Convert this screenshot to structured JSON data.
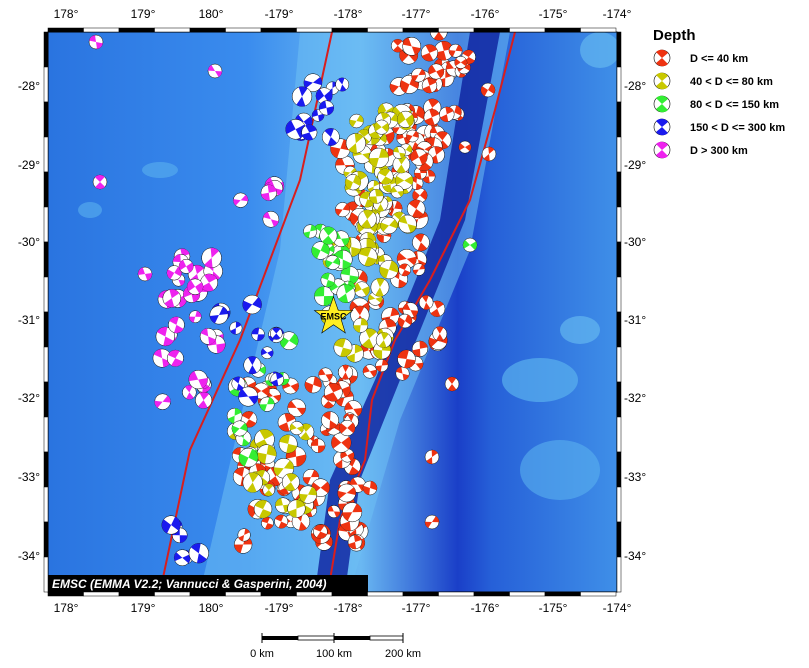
{
  "map": {
    "lon_range": [
      178.0,
      -174.0
    ],
    "lat_range": [
      -34.4,
      -27.3
    ],
    "top_lon_ticks": [
      "178°",
      "179°",
      "180°",
      "-179°",
      "-178°",
      "-177°",
      "-176°",
      "-175°",
      "-174°"
    ],
    "bottom_lon_ticks": [
      "178°",
      "179°",
      "180°",
      "-179°",
      "-178°",
      "-177°",
      "-176°",
      "-175°",
      "-174°"
    ],
    "left_lat_ticks": [
      "-28°",
      "-29°",
      "-30°",
      "-31°",
      "-32°",
      "-33°",
      "-34°"
    ],
    "right_lat_ticks": [
      "-28°",
      "-29°",
      "-30°",
      "-31°",
      "-32°",
      "-33°",
      "-34°"
    ],
    "colors": {
      "ocean_deep": "#1f4fd6",
      "ocean_mid": "#2f82ea",
      "ocean_light": "#5fb0f2",
      "trench": "#0a1a9a",
      "plate_boundary": "#d81e1e"
    },
    "credit": "EMSC (EMMA V2.2; Vannucci & Gasperini, 2004)",
    "epicenter": {
      "label": "EMSC",
      "lon": 181.9,
      "lat": -30.95,
      "symbol": "star"
    }
  },
  "legend": {
    "title": "Depth",
    "items": [
      {
        "label": "D <= 40 km",
        "color": "#ee3311",
        "icon": "beachball-shallow-icon"
      },
      {
        "label": "40 < D <= 80 km",
        "color": "#c8c800",
        "icon": "beachball-intermediate-shallow-icon"
      },
      {
        "label": "80 < D <= 150 km",
        "color": "#33ee33",
        "icon": "beachball-intermediate-icon"
      },
      {
        "label": "150 < D <= 300 km",
        "color": "#1a1aee",
        "icon": "beachball-deep-icon"
      },
      {
        "label": "D > 300 km",
        "color": "#ee22ee",
        "icon": "beachball-very-deep-icon"
      }
    ]
  },
  "scale_bar": {
    "labels": [
      "0 km",
      "100 km",
      "200 km"
    ]
  }
}
